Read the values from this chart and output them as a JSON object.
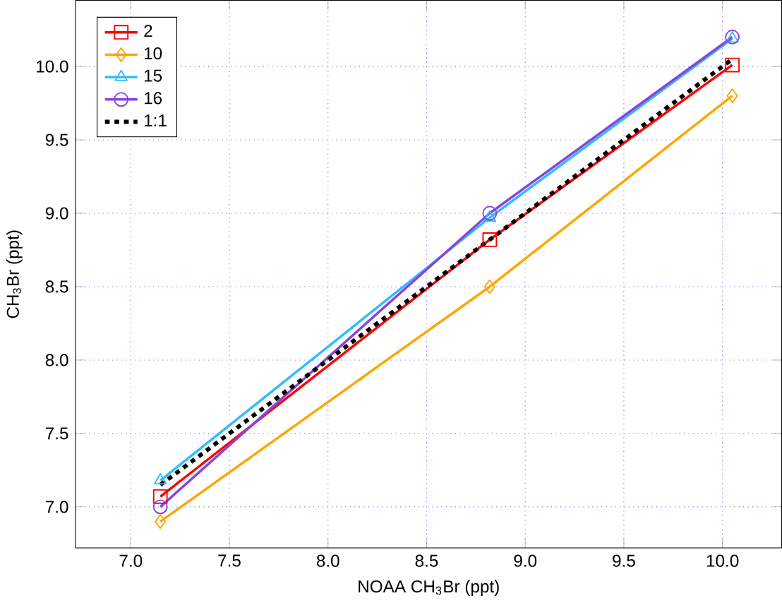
{
  "chart_data": {
    "type": "line",
    "xlabel": "NOAA CH$_{3}$Br (ppt)",
    "ylabel": "CH$_{3}$Br (ppt)",
    "x": [
      7.15,
      8.82,
      10.05
    ],
    "series": [
      {
        "name": "2",
        "color": "#ff0000",
        "marker": "square",
        "values": [
          7.07,
          8.82,
          10.01
        ]
      },
      {
        "name": "10",
        "color": "#ffa500",
        "marker": "diamond",
        "values": [
          6.9,
          8.5,
          9.8
        ]
      },
      {
        "name": "15",
        "color": "#33bbff",
        "marker": "triangle",
        "values": [
          7.18,
          8.97,
          10.19
        ]
      },
      {
        "name": "16",
        "color": "#8844dd",
        "marker": "circle",
        "values": [
          7.0,
          9.0,
          10.2
        ]
      },
      {
        "name": "1:1",
        "color": "#000000",
        "marker": "none",
        "line_style": "dotted",
        "values": [
          7.15,
          8.82,
          10.05
        ]
      }
    ],
    "xlim": [
      6.72,
      10.3
    ],
    "ylim": [
      6.72,
      10.45
    ],
    "xticks": [
      {
        "value": 7,
        "label": "7.0"
      },
      7.5,
      {
        "value": 8,
        "label": "8.0"
      },
      8.5,
      {
        "value": 9,
        "label": "9.0"
      },
      9.5,
      {
        "value": 10,
        "label": "10.0"
      }
    ],
    "yticks": [
      {
        "value": 7,
        "label": "7.0"
      },
      7.5,
      {
        "value": 8,
        "label": "8.0"
      },
      8.5,
      {
        "value": 9,
        "label": "9.0"
      },
      9.5,
      {
        "value": 10,
        "label": "10.0"
      }
    ],
    "grid": true,
    "legend": "top left"
  }
}
